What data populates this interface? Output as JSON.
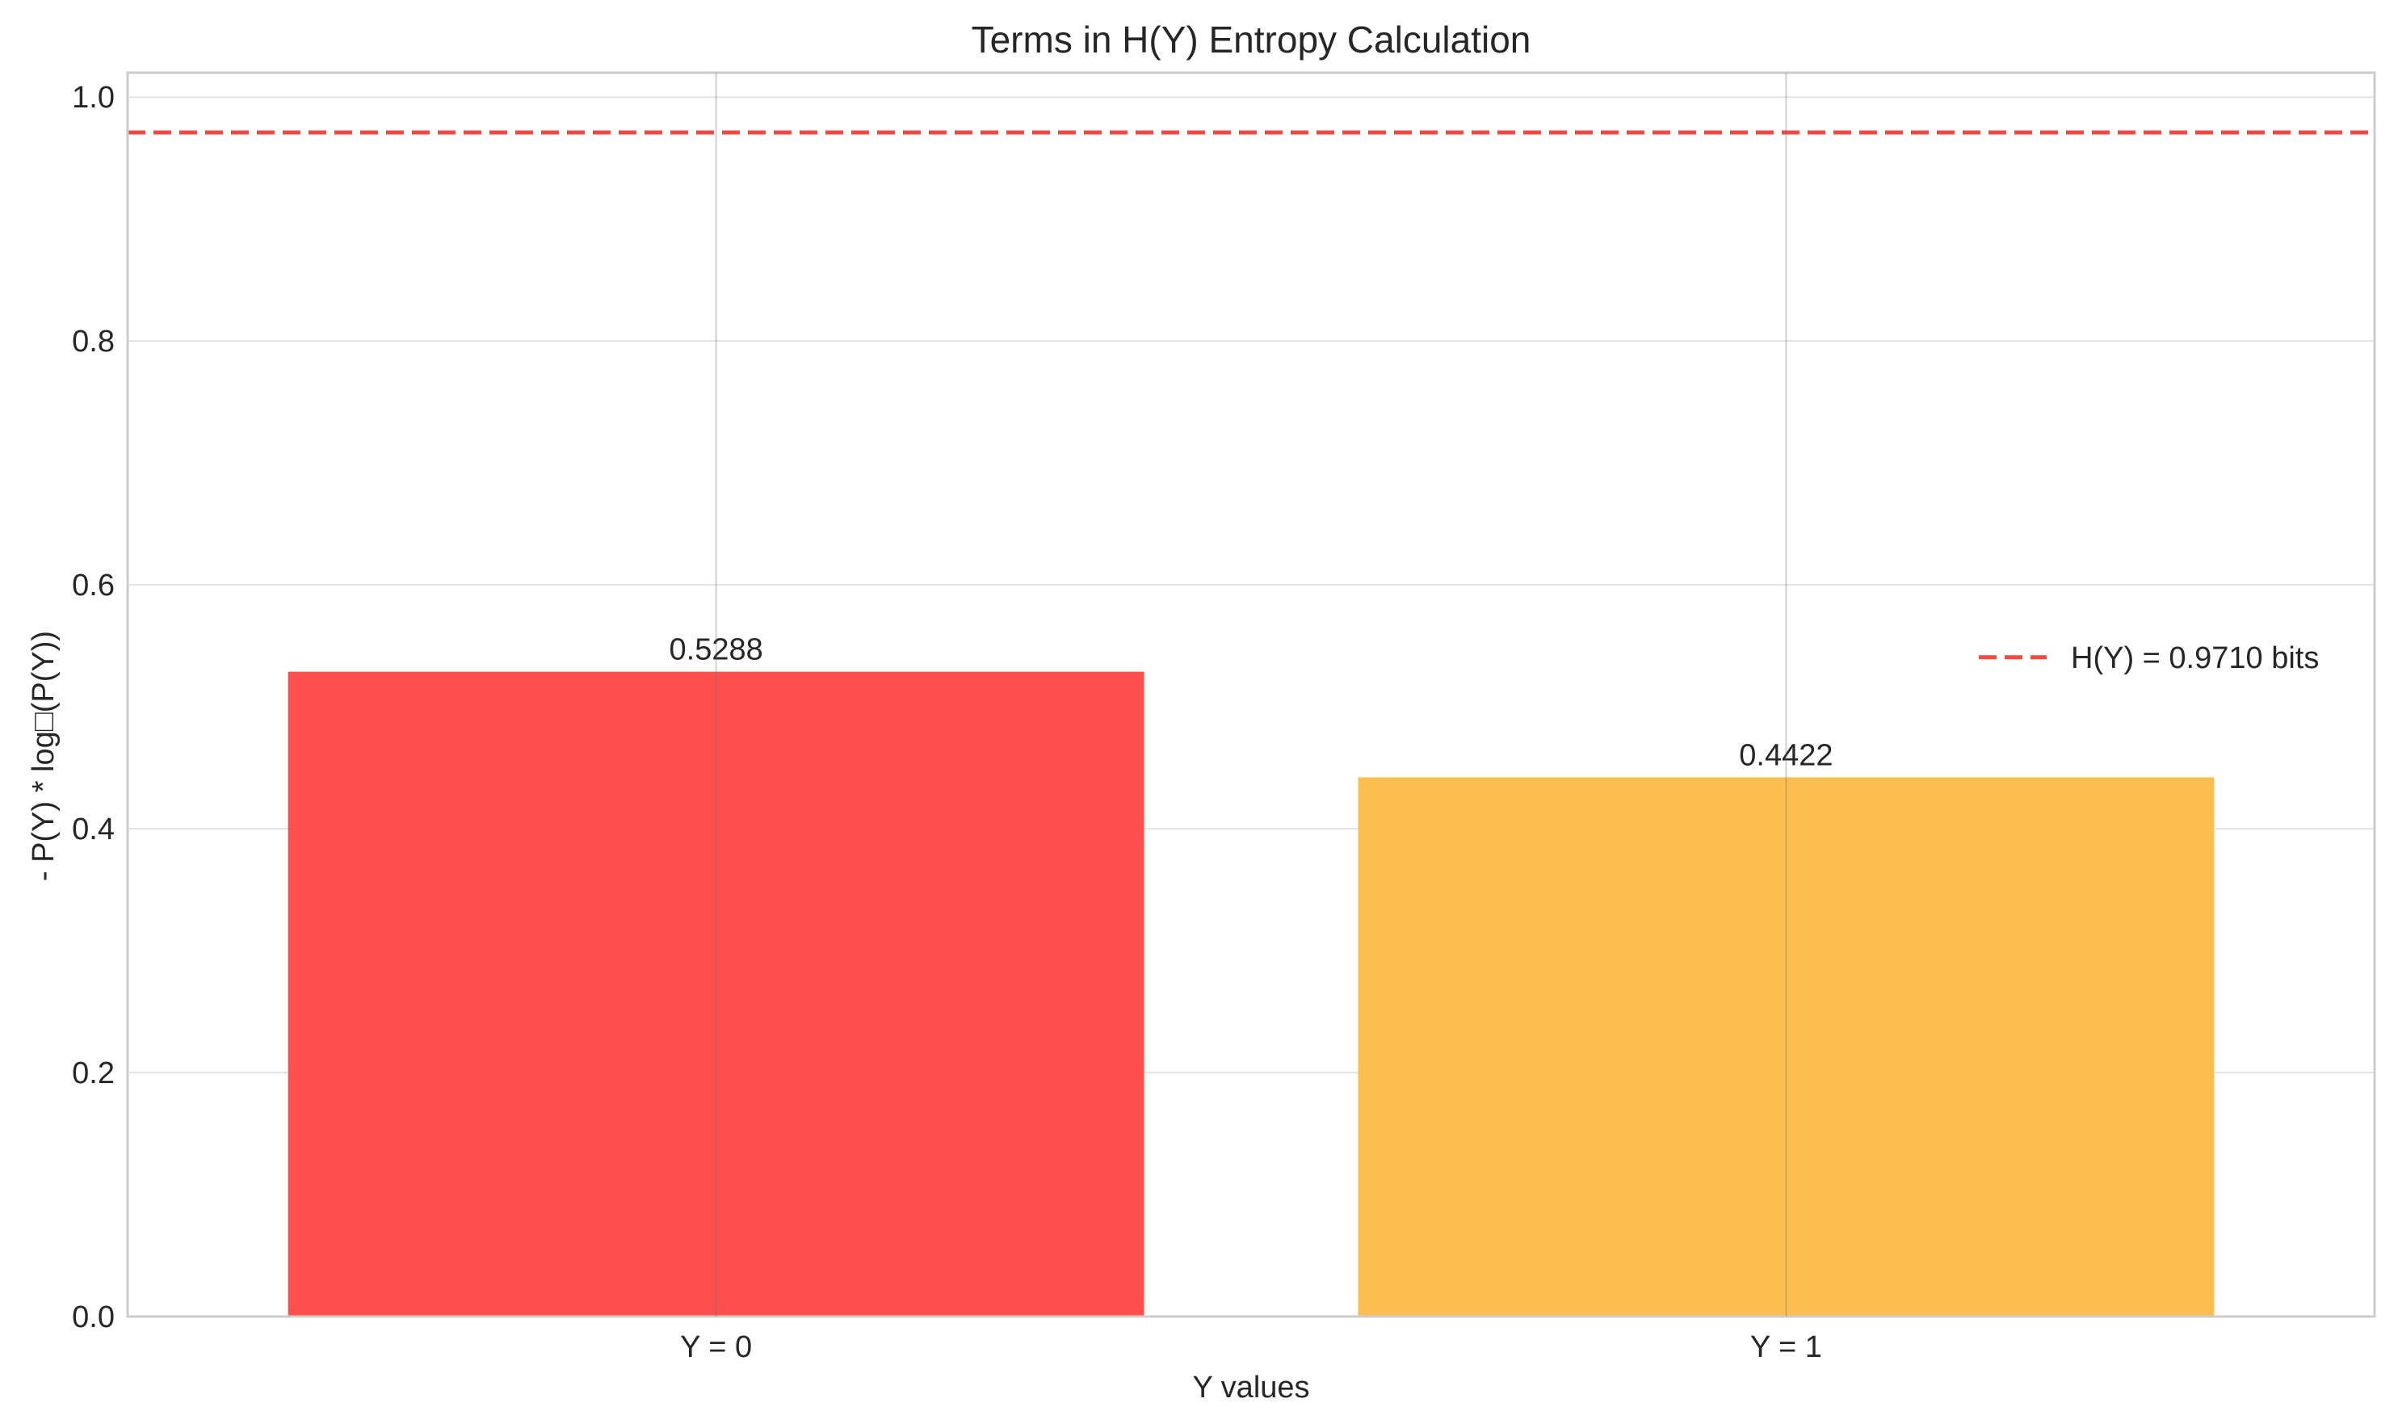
{
  "chart_data": {
    "type": "bar",
    "title": "Terms in H(Y) Entropy Calculation",
    "xlabel": "Y values",
    "ylabel": "- P(Y) * log□(P(Y))",
    "categories": [
      "Y = 0",
      "Y = 1"
    ],
    "values": [
      0.5288,
      0.4422
    ],
    "value_labels": [
      "0.5288",
      "0.4422"
    ],
    "bar_colors": [
      "#ff4f4f",
      "#fdbe4f"
    ],
    "ylim": [
      0,
      1.02
    ],
    "yticks": [
      0.0,
      0.2,
      0.4,
      0.6,
      0.8,
      1.0
    ],
    "ytick_labels": [
      "0.0",
      "0.2",
      "0.4",
      "0.6",
      "0.8",
      "1.0"
    ],
    "grid": true,
    "reference_line": {
      "value": 0.971,
      "label": "H(Y) = 0.9710 bits",
      "color": "#f04a45",
      "style": "dashed"
    },
    "legend_position": "center-right"
  }
}
